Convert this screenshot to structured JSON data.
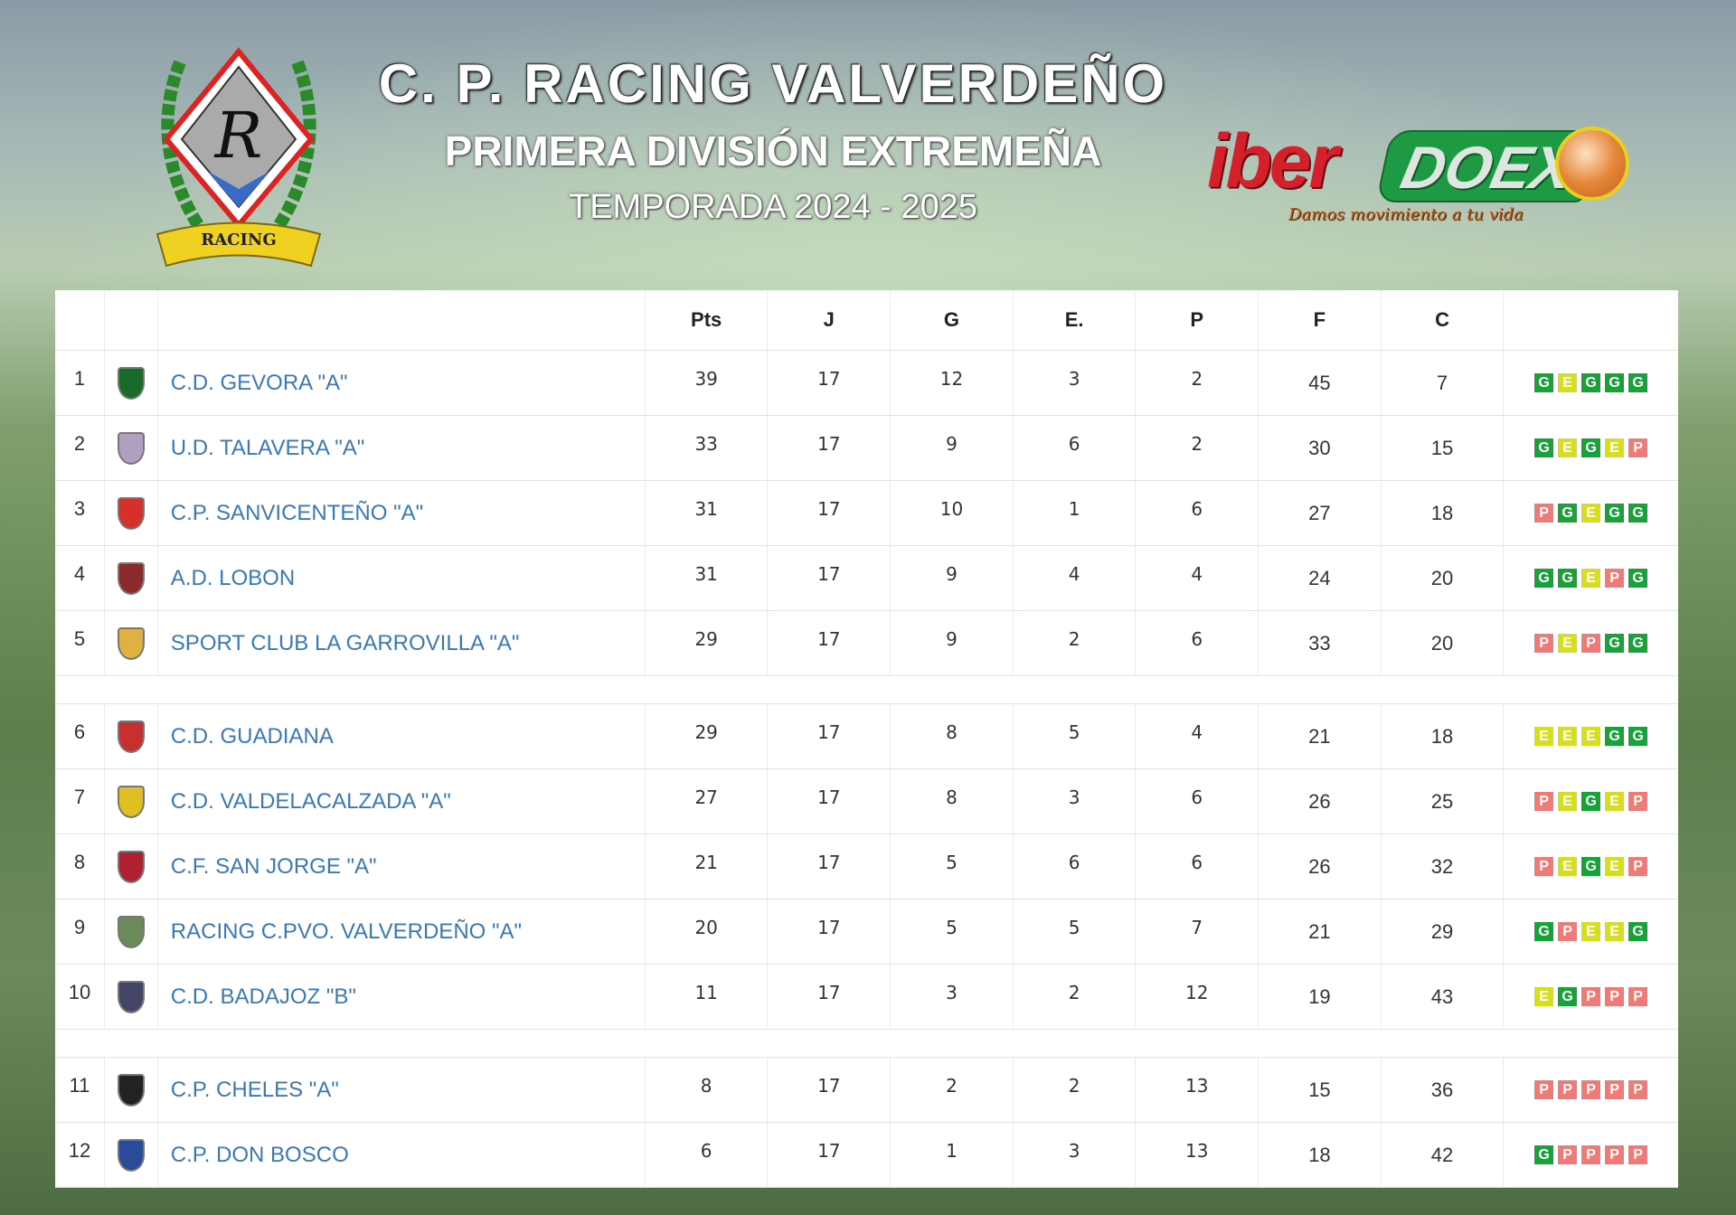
{
  "header": {
    "title": "C. P. RACING VALVERDEÑO",
    "subtitle": "PRIMERA DIVISIÓN EXTREMEÑA",
    "season": "TEMPORADA 2024 - 2025"
  },
  "club_crest": {
    "text": "RACING VALVER DEÑO",
    "letter": "R"
  },
  "sponsor": {
    "part1": "iber",
    "part2": "DOEX",
    "tagline": "Damos movimiento a tu vida"
  },
  "colors": {
    "win": "#17a33a",
    "draw": "#d6de22",
    "loss": "#f07a78",
    "team_link": "#3a78b8"
  },
  "columns": [
    "Pts",
    "J",
    "G",
    "E.",
    "P",
    "F",
    "C"
  ],
  "groups": [
    [
      {
        "rank": "1",
        "team": "C.D. GEVORA \"A\"",
        "pts": "39",
        "j": "17",
        "g": "12",
        "e": "3",
        "p": "2",
        "f": "45",
        "c": "7",
        "form": [
          "G",
          "E",
          "G",
          "G",
          "G"
        ],
        "crest": "#1a6a2a"
      },
      {
        "rank": "2",
        "team": "U.D. TALAVERA \"A\"",
        "pts": "33",
        "j": "17",
        "g": "9",
        "e": "6",
        "p": "2",
        "f": "30",
        "c": "15",
        "form": [
          "G",
          "E",
          "G",
          "E",
          "P"
        ],
        "crest": "#b0a0c0"
      },
      {
        "rank": "3",
        "team": "C.P. SANVICENTEÑO \"A\"",
        "pts": "31",
        "j": "17",
        "g": "10",
        "e": "1",
        "p": "6",
        "f": "27",
        "c": "18",
        "form": [
          "P",
          "G",
          "E",
          "G",
          "G"
        ],
        "crest": "#d6302a"
      },
      {
        "rank": "4",
        "team": "A.D. LOBON",
        "pts": "31",
        "j": "17",
        "g": "9",
        "e": "4",
        "p": "4",
        "f": "24",
        "c": "20",
        "form": [
          "G",
          "G",
          "E",
          "P",
          "G"
        ],
        "crest": "#8a2a2a"
      },
      {
        "rank": "5",
        "team": "SPORT CLUB LA GARROVILLA \"A\"",
        "pts": "29",
        "j": "17",
        "g": "9",
        "e": "2",
        "p": "6",
        "f": "33",
        "c": "20",
        "form": [
          "P",
          "E",
          "P",
          "G",
          "G"
        ],
        "crest": "#e0b040"
      }
    ],
    [
      {
        "rank": "6",
        "team": "C.D. GUADIANA",
        "pts": "29",
        "j": "17",
        "g": "8",
        "e": "5",
        "p": "4",
        "f": "21",
        "c": "18",
        "form": [
          "E",
          "E",
          "E",
          "G",
          "G"
        ],
        "crest": "#c83030"
      },
      {
        "rank": "7",
        "team": "C.D. VALDELACALZADA \"A\"",
        "pts": "27",
        "j": "17",
        "g": "8",
        "e": "3",
        "p": "6",
        "f": "26",
        "c": "25",
        "form": [
          "P",
          "E",
          "G",
          "E",
          "P"
        ],
        "crest": "#e0c020"
      },
      {
        "rank": "8",
        "team": "C.F. SAN JORGE \"A\"",
        "pts": "21",
        "j": "17",
        "g": "5",
        "e": "6",
        "p": "6",
        "f": "26",
        "c": "32",
        "form": [
          "P",
          "E",
          "G",
          "E",
          "P"
        ],
        "crest": "#b02030"
      },
      {
        "rank": "9",
        "team": "RACING C.PVO. VALVERDEÑO \"A\"",
        "pts": "20",
        "j": "17",
        "g": "5",
        "e": "5",
        "p": "7",
        "f": "21",
        "c": "29",
        "form": [
          "G",
          "P",
          "E",
          "E",
          "G"
        ],
        "crest": "#6a8a5a"
      },
      {
        "rank": "10",
        "team": "C.D. BADAJOZ \"B\"",
        "pts": "11",
        "j": "17",
        "g": "3",
        "e": "2",
        "p": "12",
        "f": "19",
        "c": "43",
        "form": [
          "E",
          "G",
          "P",
          "P",
          "P"
        ],
        "crest": "#444466"
      }
    ],
    [
      {
        "rank": "11",
        "team": "C.P. CHELES \"A\"",
        "pts": "8",
        "j": "17",
        "g": "2",
        "e": "2",
        "p": "13",
        "f": "15",
        "c": "36",
        "form": [
          "P",
          "P",
          "P",
          "P",
          "P"
        ],
        "crest": "#222222"
      },
      {
        "rank": "12",
        "team": "C.P. DON BOSCO",
        "pts": "6",
        "j": "17",
        "g": "1",
        "e": "3",
        "p": "13",
        "f": "18",
        "c": "42",
        "form": [
          "G",
          "P",
          "P",
          "P",
          "P"
        ],
        "crest": "#2a4a9a"
      }
    ]
  ]
}
